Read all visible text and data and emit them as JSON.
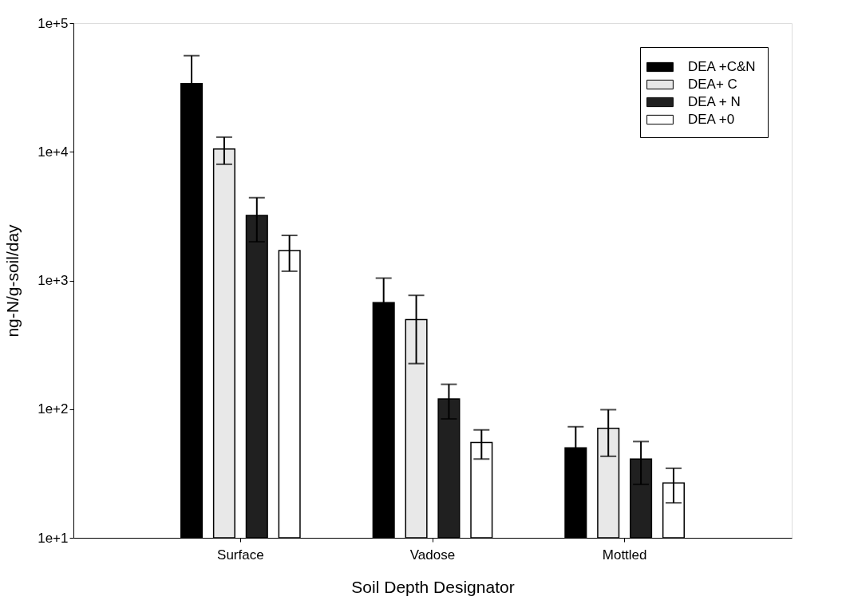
{
  "chart_data": {
    "type": "bar",
    "xlabel": "Soil Depth Designator",
    "ylabel": "ng-N/g-soil/day",
    "categories": [
      "Surface",
      "Vadose",
      "Mottled"
    ],
    "series": [
      {
        "name": "DEA +C&N",
        "color": "#000000",
        "values": [
          33900,
          673,
          50
        ],
        "errors": [
          22000,
          370,
          23
        ]
      },
      {
        "name": "DEA+ C",
        "color": "#e8e8e8",
        "values": [
          10500,
          496,
          71
        ],
        "errors": [
          2500,
          270,
          28
        ]
      },
      {
        "name": "DEA + N",
        "color": "#202020",
        "values": [
          3200,
          120,
          41
        ],
        "errors": [
          1200,
          36,
          15
        ]
      },
      {
        "name": "DEA +0",
        "color": "#ffffff",
        "values": [
          1710,
          55,
          26.7
        ],
        "errors": [
          530,
          14,
          8
        ]
      }
    ],
    "log": true,
    "ylim": [
      10,
      100000
    ],
    "yticks": [
      {
        "value": 10,
        "label": "1e+1"
      },
      {
        "value": 100,
        "label": "1e+2"
      },
      {
        "value": 1000,
        "label": "1e+3"
      },
      {
        "value": 10000,
        "label": "1e+4"
      },
      {
        "value": 100000,
        "label": "1e+5"
      }
    ],
    "grid": false,
    "legend": "top right"
  }
}
